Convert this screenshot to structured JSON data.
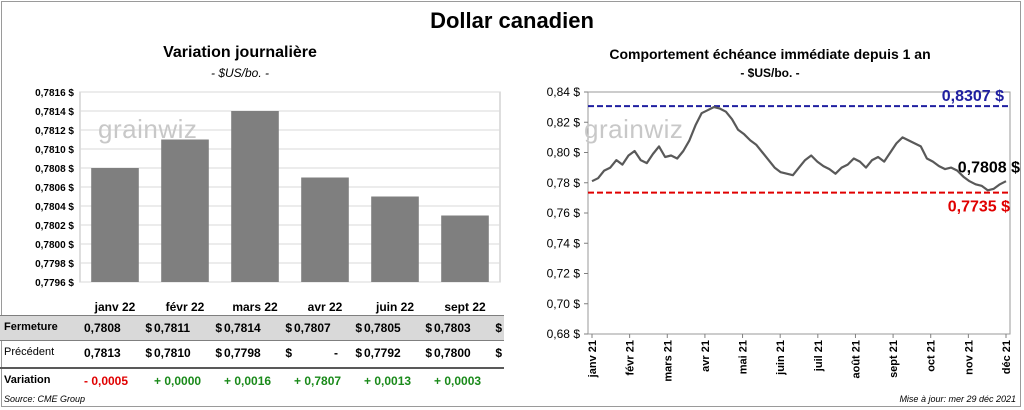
{
  "page": {
    "title": "Dollar canadien",
    "source": "Source: CME Group",
    "update": "Mise à jour: mer 29 déc 2021",
    "watermark": "grainwiz"
  },
  "left_panel": {
    "title": "Variation  journalière",
    "subtitle": "- $US/bo. -",
    "table": {
      "rows": [
        {
          "label": "Fermeture",
          "values": [
            "0,7808",
            "0,7811",
            "0,7814",
            "0,7807",
            "0,7805",
            "0,7803"
          ],
          "dollars": [
            "$",
            "$",
            "$",
            "$",
            "$",
            "$"
          ]
        },
        {
          "label": "Précédent",
          "values": [
            "0,7813",
            "0,7810",
            "0,7798",
            "-",
            "0,7792",
            "0,7800"
          ],
          "dollars": [
            "$",
            "$",
            "$",
            "$",
            "$",
            "$"
          ]
        },
        {
          "label": "Variation",
          "values": [
            "- 0,0005",
            "+ 0,0000",
            "+ 0,0016",
            "+ 0,7807",
            "+ 0,0013",
            "+ 0,0003"
          ],
          "dollars": [
            "",
            "",
            "",
            "",
            "",
            ""
          ]
        }
      ],
      "variation_colors": [
        "#e00000",
        "#1a8a1a",
        "#1a8a1a",
        "#1a8a1a",
        "#1a8a1a",
        "#1a8a1a"
      ]
    }
  },
  "right_panel": {
    "title": "Comportement échéance immédiate depuis 1 an",
    "subtitle": "- $US/bo. -",
    "high_label": "0,8307 $",
    "last_label": "0,7808 $",
    "low_label": "0,7735  $"
  },
  "colors": {
    "bar": "#7f7f7f",
    "line": "#595959",
    "high": "#1f1fa0",
    "low": "#e00000",
    "row_shade": "#d9d9d9"
  },
  "chart_data": [
    {
      "type": "bar",
      "categories": [
        "janv 22",
        "févr 22",
        "mars 22",
        "avr 22",
        "juin 22",
        "sept 22"
      ],
      "values": [
        0.7808,
        0.7811,
        0.7814,
        0.7807,
        0.7805,
        0.7803
      ],
      "ylim": [
        0.7796,
        0.7816
      ],
      "yticks": [
        "0,7816 $",
        "0,7814 $",
        "0,7812 $",
        "0,7810 $",
        "0,7808 $",
        "0,7806 $",
        "0,7804 $",
        "0,7802 $",
        "0,7800 $",
        "0,7798 $",
        "0,7796 $"
      ],
      "grid": true
    },
    {
      "type": "line",
      "ylim": [
        0.68,
        0.84
      ],
      "yticks": [
        "0,84 $",
        "0,82 $",
        "0,80 $",
        "0,78 $",
        "0,76 $",
        "0,74 $",
        "0,72 $",
        "0,70 $",
        "0,68 $"
      ],
      "xticks": [
        "janv 21",
        "févr 21",
        "mars 21",
        "avr 21",
        "mai 21",
        "juin 21",
        "juil 21",
        "août 21",
        "sept 21",
        "oct 21",
        "nov 21",
        "déc 21"
      ],
      "high": 0.8307,
      "low": 0.7735,
      "last": 0.7808,
      "values": [
        0.781,
        0.783,
        0.788,
        0.79,
        0.795,
        0.792,
        0.798,
        0.801,
        0.795,
        0.793,
        0.799,
        0.804,
        0.797,
        0.798,
        0.796,
        0.801,
        0.808,
        0.818,
        0.826,
        0.828,
        0.83,
        0.829,
        0.827,
        0.822,
        0.815,
        0.812,
        0.808,
        0.805,
        0.8,
        0.795,
        0.79,
        0.787,
        0.786,
        0.785,
        0.79,
        0.795,
        0.798,
        0.794,
        0.791,
        0.789,
        0.786,
        0.79,
        0.792,
        0.796,
        0.794,
        0.79,
        0.795,
        0.797,
        0.794,
        0.8,
        0.806,
        0.81,
        0.808,
        0.806,
        0.804,
        0.796,
        0.794,
        0.791,
        0.789,
        0.79,
        0.788,
        0.784,
        0.781,
        0.779,
        0.778,
        0.775,
        0.776,
        0.779,
        0.781
      ]
    }
  ]
}
